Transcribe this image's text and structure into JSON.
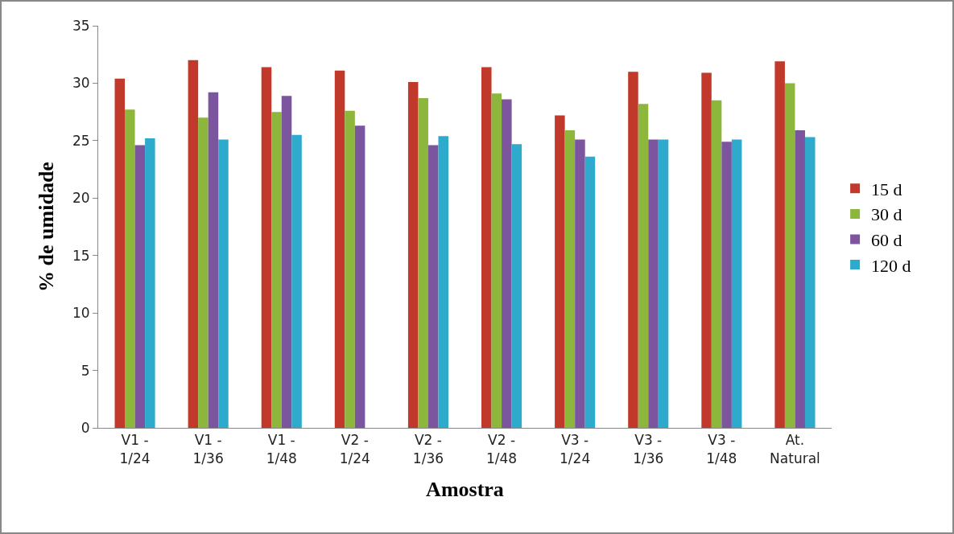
{
  "chart_data": {
    "type": "bar",
    "xlabel": "Amostra",
    "ylabel": "% de umidade",
    "categories": [
      "V1 -\n1/24",
      "V1 -\n1/36",
      "V1 -\n1/48",
      "V2 -\n1/24",
      "V2 -\n1/36",
      "V2 -\n1/48",
      "V3 -\n1/24",
      "V3 -\n1/36",
      "V3 -\n1/48",
      "At.\nNatural"
    ],
    "series": [
      {
        "name": "15 d",
        "color": "#c0392b",
        "values": [
          30.4,
          32.0,
          31.4,
          31.1,
          30.1,
          31.4,
          27.2,
          31.0,
          30.9,
          31.9
        ]
      },
      {
        "name": "30 d",
        "color": "#8db63c",
        "values": [
          27.7,
          27.0,
          27.5,
          27.6,
          28.7,
          29.1,
          25.9,
          28.2,
          28.5,
          30.0
        ]
      },
      {
        "name": "60 d",
        "color": "#7b559e",
        "values": [
          24.6,
          29.2,
          28.9,
          26.3,
          24.6,
          28.6,
          25.1,
          25.1,
          24.9,
          25.9
        ]
      },
      {
        "name": "120 d",
        "color": "#2eaacc",
        "values": [
          25.2,
          25.1,
          25.5,
          null,
          25.4,
          24.7,
          23.6,
          25.1,
          25.1,
          25.3
        ]
      }
    ],
    "ylim": [
      0,
      35
    ],
    "yticks": [
      0,
      5,
      10,
      15,
      20,
      25,
      30,
      35
    ],
    "grid": false,
    "legend": "right"
  }
}
